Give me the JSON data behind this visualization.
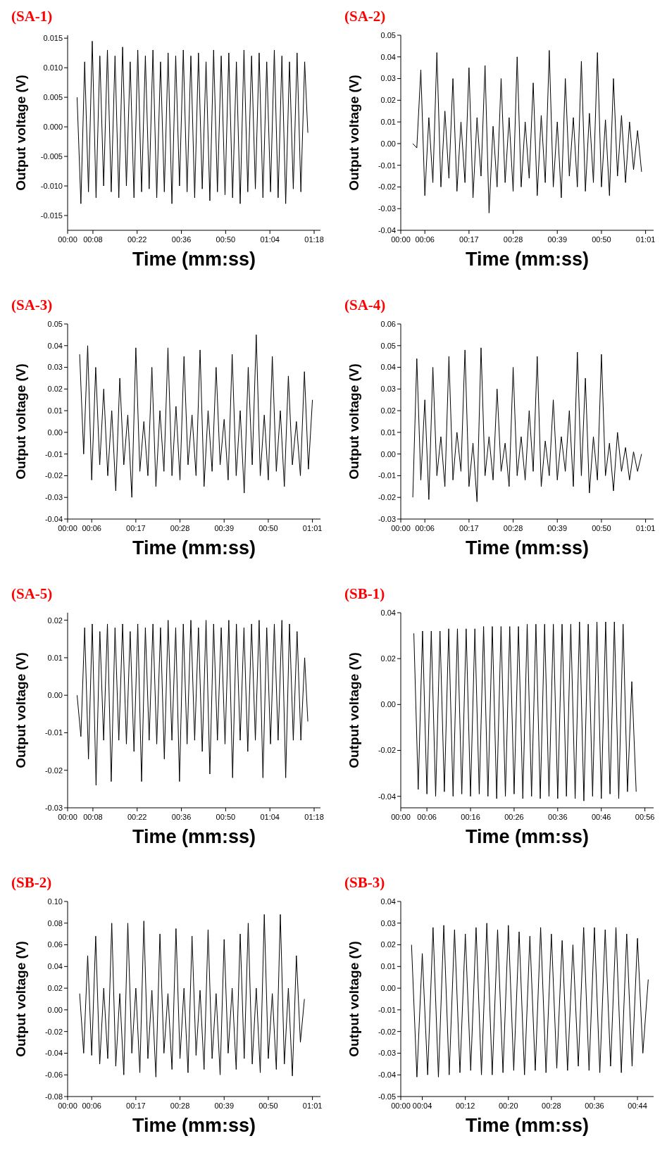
{
  "chart_data": [
    {
      "type": "line",
      "title": "(SA-1)",
      "xlabel": "Time (mm:ss)",
      "ylabel": "Output voltage (V)",
      "xlim": [
        0,
        80
      ],
      "xticks": [
        {
          "value": 0,
          "label": "00:00"
        },
        {
          "value": 8,
          "label": "00:08"
        },
        {
          "value": 22,
          "label": "00:22"
        },
        {
          "value": 36,
          "label": "00:36"
        },
        {
          "value": 50,
          "label": "00:50"
        },
        {
          "value": 64,
          "label": "01:04"
        },
        {
          "value": 78,
          "label": "01:18"
        }
      ],
      "ylim": [
        -0.0175,
        0.0155
      ],
      "yticks": [
        {
          "value": -0.015,
          "label": "-0.015"
        },
        {
          "value": -0.01,
          "label": "-0.010"
        },
        {
          "value": -0.005,
          "label": "-0.005"
        },
        {
          "value": 0,
          "label": "0.000"
        },
        {
          "value": 0.005,
          "label": "0.005"
        },
        {
          "value": 0.01,
          "label": "0.010"
        },
        {
          "value": 0.015,
          "label": "0.015"
        }
      ],
      "x": [
        3.0,
        4.2,
        5.4,
        6.6,
        7.8,
        9.0,
        10.2,
        11.4,
        12.6,
        13.8,
        15.0,
        16.2,
        17.4,
        18.6,
        19.8,
        21.0,
        22.2,
        23.4,
        24.6,
        25.8,
        27.0,
        28.2,
        29.4,
        30.6,
        31.8,
        33.0,
        34.2,
        35.4,
        36.6,
        37.8,
        39.0,
        40.2,
        41.4,
        42.6,
        43.8,
        45.0,
        46.2,
        47.4,
        48.6,
        49.8,
        51.0,
        52.2,
        53.4,
        54.6,
        55.8,
        57.0,
        58.2,
        59.4,
        60.6,
        61.8,
        63.0,
        64.2,
        65.4,
        66.6,
        67.8,
        69.0,
        70.2,
        71.4,
        72.6,
        73.8,
        75.0,
        76.0
      ],
      "series": [
        {
          "color": "#000000",
          "values": [
            0.005,
            -0.013,
            0.011,
            -0.011,
            0.0145,
            -0.012,
            0.012,
            -0.01,
            0.013,
            -0.011,
            0.012,
            -0.012,
            0.0135,
            -0.01,
            0.011,
            -0.012,
            0.013,
            -0.011,
            0.012,
            -0.0105,
            0.013,
            -0.012,
            0.011,
            -0.011,
            0.0125,
            -0.013,
            0.012,
            -0.01,
            0.013,
            -0.011,
            0.012,
            -0.012,
            0.0125,
            -0.0105,
            0.011,
            -0.0125,
            0.013,
            -0.011,
            0.012,
            -0.0115,
            0.0125,
            -0.012,
            0.011,
            -0.013,
            0.013,
            -0.011,
            0.012,
            -0.0105,
            0.0125,
            -0.012,
            0.011,
            -0.011,
            0.013,
            -0.012,
            0.012,
            -0.013,
            0.011,
            -0.0105,
            0.0125,
            -0.011,
            0.011,
            -0.001
          ]
        }
      ]
    },
    {
      "type": "line",
      "title": "(SA-2)",
      "xlabel": "Time (mm:ss)",
      "ylabel": "Output voltage (V)",
      "xlim": [
        0,
        63
      ],
      "xticks": [
        {
          "value": 0,
          "label": "00:00"
        },
        {
          "value": 6,
          "label": "00:06"
        },
        {
          "value": 17,
          "label": "00:17"
        },
        {
          "value": 28,
          "label": "00:28"
        },
        {
          "value": 39,
          "label": "00:39"
        },
        {
          "value": 50,
          "label": "00:50"
        },
        {
          "value": 61,
          "label": "01:01"
        }
      ],
      "ylim": [
        -0.04,
        0.05
      ],
      "yticks": [
        {
          "value": -0.04,
          "label": "-0.04"
        },
        {
          "value": -0.03,
          "label": "-0.03"
        },
        {
          "value": -0.02,
          "label": "-0.02"
        },
        {
          "value": -0.01,
          "label": "-0.01"
        },
        {
          "value": 0,
          "label": "0.00"
        },
        {
          "value": 0.01,
          "label": "0.01"
        },
        {
          "value": 0.02,
          "label": "0.02"
        },
        {
          "value": 0.03,
          "label": "0.03"
        },
        {
          "value": 0.04,
          "label": "0.04"
        },
        {
          "value": 0.05,
          "label": "0.05"
        }
      ],
      "x": [
        3,
        4,
        5,
        6,
        7,
        8,
        9,
        10,
        11,
        12,
        13,
        14,
        15,
        16,
        17,
        18,
        19,
        20,
        21,
        22,
        23,
        24,
        25,
        26,
        27,
        28,
        29,
        30,
        31,
        32,
        33,
        34,
        35,
        36,
        37,
        38,
        39,
        40,
        41,
        42,
        43,
        44,
        45,
        46,
        47,
        48,
        49,
        50,
        51,
        52,
        53,
        54,
        55,
        56,
        57,
        58,
        59,
        60
      ],
      "series": [
        {
          "color": "#000000",
          "values": [
            0.0,
            -0.002,
            0.034,
            -0.024,
            0.012,
            -0.018,
            0.042,
            -0.02,
            0.015,
            -0.016,
            0.03,
            -0.022,
            0.01,
            -0.018,
            0.035,
            -0.025,
            0.012,
            -0.015,
            0.036,
            -0.032,
            0.008,
            -0.02,
            0.03,
            -0.018,
            0.012,
            -0.022,
            0.04,
            -0.02,
            0.01,
            -0.016,
            0.028,
            -0.024,
            0.013,
            -0.018,
            0.043,
            -0.02,
            0.01,
            -0.025,
            0.03,
            -0.015,
            0.012,
            -0.02,
            0.038,
            -0.022,
            0.014,
            -0.018,
            0.042,
            -0.02,
            0.011,
            -0.024,
            0.03,
            -0.015,
            0.013,
            -0.018,
            0.01,
            -0.012,
            0.006,
            -0.013
          ]
        }
      ]
    },
    {
      "type": "line",
      "title": "(SA-3)",
      "xlabel": "Time (mm:ss)",
      "ylabel": "Output voltage (V)",
      "xlim": [
        0,
        63
      ],
      "xticks": [
        {
          "value": 0,
          "label": "00:00"
        },
        {
          "value": 6,
          "label": "00:06"
        },
        {
          "value": 17,
          "label": "00:17"
        },
        {
          "value": 28,
          "label": "00:28"
        },
        {
          "value": 39,
          "label": "00:39"
        },
        {
          "value": 50,
          "label": "00:50"
        },
        {
          "value": 61,
          "label": "01:01"
        }
      ],
      "ylim": [
        -0.04,
        0.05
      ],
      "yticks": [
        {
          "value": -0.04,
          "label": "-0.04"
        },
        {
          "value": -0.03,
          "label": "-0.03"
        },
        {
          "value": -0.02,
          "label": "-0.02"
        },
        {
          "value": -0.01,
          "label": "-0.01"
        },
        {
          "value": 0,
          "label": "0.00"
        },
        {
          "value": 0.01,
          "label": "0.01"
        },
        {
          "value": 0.02,
          "label": "0.02"
        },
        {
          "value": 0.03,
          "label": "0.03"
        },
        {
          "value": 0.04,
          "label": "0.04"
        },
        {
          "value": 0.05,
          "label": "0.05"
        }
      ],
      "x": [
        3,
        4,
        5,
        6,
        7,
        8,
        9,
        10,
        11,
        12,
        13,
        14,
        15,
        16,
        17,
        18,
        19,
        20,
        21,
        22,
        23,
        24,
        25,
        26,
        27,
        28,
        29,
        30,
        31,
        32,
        33,
        34,
        35,
        36,
        37,
        38,
        39,
        40,
        41,
        42,
        43,
        44,
        45,
        46,
        47,
        48,
        49,
        50,
        51,
        52,
        53,
        54,
        55,
        56,
        57,
        58,
        59,
        60,
        61
      ],
      "series": [
        {
          "color": "#000000",
          "values": [
            0.036,
            -0.01,
            0.04,
            -0.022,
            0.03,
            -0.015,
            0.02,
            -0.02,
            0.01,
            -0.027,
            0.025,
            -0.015,
            0.008,
            -0.03,
            0.039,
            -0.018,
            0.005,
            -0.02,
            0.03,
            -0.025,
            0.01,
            -0.018,
            0.039,
            -0.02,
            0.012,
            -0.022,
            0.035,
            -0.015,
            0.008,
            -0.02,
            0.038,
            -0.025,
            0.01,
            -0.018,
            0.03,
            -0.015,
            0.006,
            -0.022,
            0.036,
            -0.02,
            0.01,
            -0.028,
            0.03,
            -0.015,
            0.045,
            -0.02,
            0.008,
            -0.022,
            0.035,
            -0.018,
            0.01,
            -0.025,
            0.026,
            -0.015,
            0.005,
            -0.02,
            0.028,
            -0.017,
            0.015
          ]
        }
      ]
    },
    {
      "type": "line",
      "title": "(SA-4)",
      "xlabel": "Time (mm:ss)",
      "ylabel": "Output voltage (V)",
      "xlim": [
        0,
        63
      ],
      "xticks": [
        {
          "value": 0,
          "label": "00:00"
        },
        {
          "value": 6,
          "label": "00:06"
        },
        {
          "value": 17,
          "label": "00:17"
        },
        {
          "value": 28,
          "label": "00:28"
        },
        {
          "value": 39,
          "label": "00:39"
        },
        {
          "value": 50,
          "label": "00:50"
        },
        {
          "value": 61,
          "label": "01:01"
        }
      ],
      "ylim": [
        -0.03,
        0.06
      ],
      "yticks": [
        {
          "value": -0.03,
          "label": "-0.03"
        },
        {
          "value": -0.02,
          "label": "-0.02"
        },
        {
          "value": -0.01,
          "label": "-0.01"
        },
        {
          "value": 0,
          "label": "0.00"
        },
        {
          "value": 0.01,
          "label": "0.01"
        },
        {
          "value": 0.02,
          "label": "0.02"
        },
        {
          "value": 0.03,
          "label": "0.03"
        },
        {
          "value": 0.04,
          "label": "0.04"
        },
        {
          "value": 0.05,
          "label": "0.05"
        },
        {
          "value": 0.06,
          "label": "0.06"
        }
      ],
      "x": [
        3,
        4,
        5,
        6,
        7,
        8,
        9,
        10,
        11,
        12,
        13,
        14,
        15,
        16,
        17,
        18,
        19,
        20,
        21,
        22,
        23,
        24,
        25,
        26,
        27,
        28,
        29,
        30,
        31,
        32,
        33,
        34,
        35,
        36,
        37,
        38,
        39,
        40,
        41,
        42,
        43,
        44,
        45,
        46,
        47,
        48,
        49,
        50,
        51,
        52,
        53,
        54,
        55,
        56,
        57,
        58,
        59,
        60
      ],
      "series": [
        {
          "color": "#000000",
          "values": [
            -0.02,
            0.044,
            -0.012,
            0.025,
            -0.021,
            0.04,
            -0.01,
            0.008,
            -0.015,
            0.045,
            -0.012,
            0.01,
            -0.008,
            0.048,
            -0.015,
            0.005,
            -0.022,
            0.049,
            -0.01,
            0.008,
            -0.012,
            0.03,
            -0.008,
            0.005,
            -0.015,
            0.04,
            -0.01,
            0.008,
            -0.012,
            0.02,
            -0.008,
            0.045,
            -0.015,
            0.006,
            -0.01,
            0.025,
            -0.012,
            0.008,
            -0.008,
            0.02,
            -0.015,
            0.047,
            -0.01,
            0.035,
            -0.018,
            0.008,
            -0.012,
            0.046,
            -0.01,
            0.005,
            -0.017,
            0.01,
            -0.008,
            0.003,
            -0.012,
            0.001,
            -0.008,
            0.0
          ]
        }
      ]
    },
    {
      "type": "line",
      "title": "(SA-5)",
      "xlabel": "Time (mm:ss)",
      "ylabel": "Output voltage (V)",
      "xlim": [
        0,
        80
      ],
      "xticks": [
        {
          "value": 0,
          "label": "00:00"
        },
        {
          "value": 8,
          "label": "00:08"
        },
        {
          "value": 22,
          "label": "00:22"
        },
        {
          "value": 36,
          "label": "00:36"
        },
        {
          "value": 50,
          "label": "00:50"
        },
        {
          "value": 64,
          "label": "01:04"
        },
        {
          "value": 78,
          "label": "01:18"
        }
      ],
      "ylim": [
        -0.03,
        0.022
      ],
      "yticks": [
        {
          "value": -0.03,
          "label": "-0.03"
        },
        {
          "value": -0.02,
          "label": "-0.02"
        },
        {
          "value": -0.01,
          "label": "-0.01"
        },
        {
          "value": 0,
          "label": "0.00"
        },
        {
          "value": 0.01,
          "label": "0.01"
        },
        {
          "value": 0.02,
          "label": "0.02"
        }
      ],
      "x": [
        3.0,
        4.2,
        5.4,
        6.6,
        7.8,
        9.0,
        10.2,
        11.4,
        12.6,
        13.8,
        15.0,
        16.2,
        17.4,
        18.6,
        19.8,
        21.0,
        22.2,
        23.4,
        24.6,
        25.8,
        27.0,
        28.2,
        29.4,
        30.6,
        31.8,
        33.0,
        34.2,
        35.4,
        36.6,
        37.8,
        39.0,
        40.2,
        41.4,
        42.6,
        43.8,
        45.0,
        46.2,
        47.4,
        48.6,
        49.8,
        51.0,
        52.2,
        53.4,
        54.6,
        55.8,
        57.0,
        58.2,
        59.4,
        60.6,
        61.8,
        63.0,
        64.2,
        65.4,
        66.6,
        67.8,
        69.0,
        70.2,
        71.4,
        72.6,
        73.8,
        75.0,
        76.0
      ],
      "series": [
        {
          "color": "#000000",
          "values": [
            0.0,
            -0.011,
            0.018,
            -0.017,
            0.019,
            -0.024,
            0.017,
            -0.012,
            0.019,
            -0.023,
            0.018,
            -0.012,
            0.019,
            -0.013,
            0.017,
            -0.015,
            0.019,
            -0.023,
            0.018,
            -0.012,
            0.019,
            -0.013,
            0.018,
            -0.017,
            0.02,
            -0.012,
            0.018,
            -0.023,
            0.019,
            -0.013,
            0.02,
            -0.012,
            0.018,
            -0.015,
            0.02,
            -0.021,
            0.019,
            -0.012,
            0.018,
            -0.013,
            0.02,
            -0.022,
            0.019,
            -0.012,
            0.018,
            -0.015,
            0.019,
            -0.012,
            0.02,
            -0.022,
            0.018,
            -0.013,
            0.019,
            -0.012,
            0.02,
            -0.022,
            0.019,
            -0.012,
            0.017,
            -0.012,
            0.01,
            -0.007
          ]
        }
      ]
    },
    {
      "type": "line",
      "title": "(SB-1)",
      "xlabel": "Time (mm:ss)",
      "ylabel": "Output voltage (V)",
      "xlim": [
        0,
        58
      ],
      "xticks": [
        {
          "value": 0,
          "label": "00:00"
        },
        {
          "value": 6,
          "label": "00:06"
        },
        {
          "value": 16,
          "label": "00:16"
        },
        {
          "value": 26,
          "label": "00:26"
        },
        {
          "value": 36,
          "label": "00:36"
        },
        {
          "value": 46,
          "label": "00:46"
        },
        {
          "value": 56,
          "label": "00:56"
        }
      ],
      "ylim": [
        -0.045,
        0.04
      ],
      "yticks": [
        {
          "value": -0.04,
          "label": "-0.04"
        },
        {
          "value": -0.02,
          "label": "-0.02"
        },
        {
          "value": 0,
          "label": "0.00"
        },
        {
          "value": 0.02,
          "label": "0.02"
        },
        {
          "value": 0.04,
          "label": "0.04"
        }
      ],
      "x": [
        3,
        4,
        5,
        6,
        7,
        8,
        9,
        10,
        11,
        12,
        13,
        14,
        15,
        16,
        17,
        18,
        19,
        20,
        21,
        22,
        23,
        24,
        25,
        26,
        27,
        28,
        29,
        30,
        31,
        32,
        33,
        34,
        35,
        36,
        37,
        38,
        39,
        40,
        41,
        42,
        43,
        44,
        45,
        46,
        47,
        48,
        49,
        50,
        51,
        52,
        53,
        54
      ],
      "series": [
        {
          "color": "#000000",
          "values": [
            0.031,
            -0.037,
            0.032,
            -0.039,
            0.032,
            -0.04,
            0.032,
            -0.038,
            0.033,
            -0.04,
            0.033,
            -0.039,
            0.033,
            -0.04,
            0.033,
            -0.039,
            0.034,
            -0.04,
            0.034,
            -0.041,
            0.034,
            -0.04,
            0.034,
            -0.039,
            0.034,
            -0.041,
            0.035,
            -0.04,
            0.035,
            -0.041,
            0.035,
            -0.04,
            0.035,
            -0.041,
            0.035,
            -0.04,
            0.035,
            -0.041,
            0.036,
            -0.042,
            0.035,
            -0.04,
            0.036,
            -0.041,
            0.036,
            -0.039,
            0.036,
            -0.041,
            0.035,
            -0.038,
            0.01,
            -0.038
          ]
        }
      ]
    },
    {
      "type": "line",
      "title": "(SB-2)",
      "xlabel": "Time (mm:ss)",
      "ylabel": "Output voltage (V)",
      "xlim": [
        0,
        63
      ],
      "xticks": [
        {
          "value": 0,
          "label": "00:00"
        },
        {
          "value": 6,
          "label": "00:06"
        },
        {
          "value": 17,
          "label": "00:17"
        },
        {
          "value": 28,
          "label": "00:28"
        },
        {
          "value": 39,
          "label": "00:39"
        },
        {
          "value": 50,
          "label": "00:50"
        },
        {
          "value": 61,
          "label": "01:01"
        }
      ],
      "ylim": [
        -0.08,
        0.1
      ],
      "yticks": [
        {
          "value": -0.08,
          "label": "-0.08"
        },
        {
          "value": -0.06,
          "label": "-0.06"
        },
        {
          "value": -0.04,
          "label": "-0.04"
        },
        {
          "value": -0.02,
          "label": "-0.02"
        },
        {
          "value": 0,
          "label": "0.00"
        },
        {
          "value": 0.02,
          "label": "0.02"
        },
        {
          "value": 0.04,
          "label": "0.04"
        },
        {
          "value": 0.06,
          "label": "0.06"
        },
        {
          "value": 0.08,
          "label": "0.08"
        },
        {
          "value": 0.1,
          "label": "0.10"
        }
      ],
      "x": [
        3,
        4,
        5,
        6,
        7,
        8,
        9,
        10,
        11,
        12,
        13,
        14,
        15,
        16,
        17,
        18,
        19,
        20,
        21,
        22,
        23,
        24,
        25,
        26,
        27,
        28,
        29,
        30,
        31,
        32,
        33,
        34,
        35,
        36,
        37,
        38,
        39,
        40,
        41,
        42,
        43,
        44,
        45,
        46,
        47,
        48,
        49,
        50,
        51,
        52,
        53,
        54,
        55,
        56,
        57,
        58,
        59
      ],
      "series": [
        {
          "color": "#000000",
          "values": [
            0.015,
            -0.04,
            0.05,
            -0.042,
            0.068,
            -0.05,
            0.02,
            -0.045,
            0.08,
            -0.052,
            0.015,
            -0.06,
            0.08,
            -0.04,
            0.02,
            -0.058,
            0.082,
            -0.045,
            0.018,
            -0.062,
            0.07,
            -0.04,
            0.015,
            -0.055,
            0.075,
            -0.045,
            0.02,
            -0.058,
            0.068,
            -0.042,
            0.018,
            -0.055,
            0.074,
            -0.045,
            0.015,
            -0.06,
            0.065,
            -0.04,
            0.02,
            -0.055,
            0.07,
            -0.045,
            0.08,
            -0.05,
            0.02,
            -0.058,
            0.088,
            -0.045,
            0.015,
            -0.055,
            0.088,
            -0.05,
            0.02,
            -0.061,
            0.05,
            -0.03,
            0.01
          ]
        }
      ]
    },
    {
      "type": "line",
      "title": "(SB-3)",
      "xlabel": "Time (mm:ss)",
      "ylabel": "Output voltage (V)",
      "xlim": [
        0,
        47
      ],
      "xticks": [
        {
          "value": 0,
          "label": "00:00"
        },
        {
          "value": 4,
          "label": "00:04"
        },
        {
          "value": 12,
          "label": "00:12"
        },
        {
          "value": 20,
          "label": "00:20"
        },
        {
          "value": 28,
          "label": "00:28"
        },
        {
          "value": 36,
          "label": "00:36"
        },
        {
          "value": 44,
          "label": "00:44"
        }
      ],
      "ylim": [
        -0.05,
        0.04
      ],
      "yticks": [
        {
          "value": -0.05,
          "label": "-0.05"
        },
        {
          "value": -0.04,
          "label": "-0.04"
        },
        {
          "value": -0.03,
          "label": "-0.03"
        },
        {
          "value": -0.02,
          "label": "-0.02"
        },
        {
          "value": -0.01,
          "label": "-0.01"
        },
        {
          "value": 0,
          "label": "0.00"
        },
        {
          "value": 0.01,
          "label": "0.01"
        },
        {
          "value": 0.02,
          "label": "0.02"
        },
        {
          "value": 0.03,
          "label": "0.03"
        },
        {
          "value": 0.04,
          "label": "0.04"
        }
      ],
      "x": [
        2,
        3,
        4,
        5,
        6,
        7,
        8,
        9,
        10,
        11,
        12,
        13,
        14,
        15,
        16,
        17,
        18,
        19,
        20,
        21,
        22,
        23,
        24,
        25,
        26,
        27,
        28,
        29,
        30,
        31,
        32,
        33,
        34,
        35,
        36,
        37,
        38,
        39,
        40,
        41,
        42,
        43,
        44,
        45,
        46
      ],
      "series": [
        {
          "color": "#000000",
          "values": [
            0.02,
            -0.041,
            0.016,
            -0.04,
            0.028,
            -0.041,
            0.029,
            -0.04,
            0.027,
            -0.039,
            0.025,
            -0.038,
            0.028,
            -0.04,
            0.03,
            -0.04,
            0.027,
            -0.039,
            0.029,
            -0.038,
            0.026,
            -0.04,
            0.024,
            -0.038,
            0.028,
            -0.039,
            0.025,
            -0.037,
            0.022,
            -0.038,
            0.02,
            -0.036,
            0.028,
            -0.038,
            0.028,
            -0.039,
            0.027,
            -0.036,
            0.028,
            -0.039,
            0.025,
            -0.036,
            0.023,
            -0.03,
            0.004
          ]
        }
      ]
    }
  ]
}
